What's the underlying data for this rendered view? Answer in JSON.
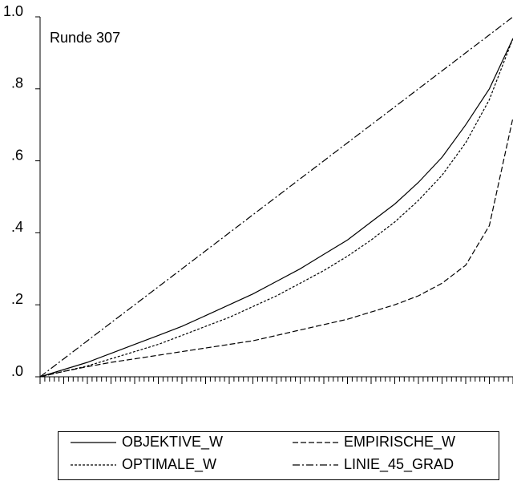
{
  "chart_data": {
    "type": "line",
    "annotation": "Runde 307",
    "x": [
      0,
      0.05,
      0.1,
      0.15,
      0.2,
      0.25,
      0.3,
      0.35,
      0.4,
      0.45,
      0.5,
      0.55,
      0.6,
      0.65,
      0.7,
      0.75,
      0.8,
      0.85,
      0.9,
      0.95,
      1
    ],
    "series": [
      {
        "name": "OBJEKTIVE_W",
        "color": "#000000",
        "dash": "solid",
        "values": [
          0,
          0.02,
          0.04,
          0.065,
          0.09,
          0.115,
          0.14,
          0.17,
          0.2,
          0.23,
          0.265,
          0.3,
          0.34,
          0.38,
          0.43,
          0.48,
          0.54,
          0.61,
          0.7,
          0.8,
          0.94
        ]
      },
      {
        "name": "EMPIRISCHE_W",
        "color": "#000000",
        "dash": "long",
        "values": [
          0,
          0.015,
          0.028,
          0.04,
          0.05,
          0.06,
          0.07,
          0.08,
          0.09,
          0.1,
          0.115,
          0.13,
          0.145,
          0.16,
          0.18,
          0.2,
          0.225,
          0.26,
          0.31,
          0.42,
          0.72
        ]
      },
      {
        "name": "OPTIMALE_W",
        "color": "#000000",
        "dash": "short",
        "values": [
          0,
          0.015,
          0.03,
          0.05,
          0.07,
          0.09,
          0.115,
          0.14,
          0.165,
          0.195,
          0.225,
          0.26,
          0.295,
          0.335,
          0.38,
          0.43,
          0.49,
          0.56,
          0.65,
          0.77,
          0.94
        ]
      },
      {
        "name": "LINIE_45_GRAD",
        "color": "#000000",
        "dash": "dashdot",
        "values": [
          0,
          0.05,
          0.1,
          0.15,
          0.2,
          0.25,
          0.3,
          0.35,
          0.4,
          0.45,
          0.5,
          0.55,
          0.6,
          0.65,
          0.7,
          0.75,
          0.8,
          0.85,
          0.9,
          0.95,
          1
        ]
      }
    ],
    "xlim": [
      0,
      1
    ],
    "xticks": [
      0,
      0.1,
      0.2,
      0.3,
      0.4,
      0.5,
      0.6,
      0.7,
      0.8,
      0.9,
      1
    ],
    "ylim": [
      0,
      1
    ],
    "yticks": [
      {
        "value": 0,
        "label": ".0"
      },
      {
        "value": 0.2,
        "label": ".2"
      },
      {
        "value": 0.4,
        "label": ".4"
      },
      {
        "value": 0.6,
        "label": ".6"
      },
      {
        "value": 0.8,
        "label": ".8"
      },
      {
        "value": 1,
        "label": "1.0"
      }
    ],
    "grid": false,
    "legend": "bottom"
  }
}
